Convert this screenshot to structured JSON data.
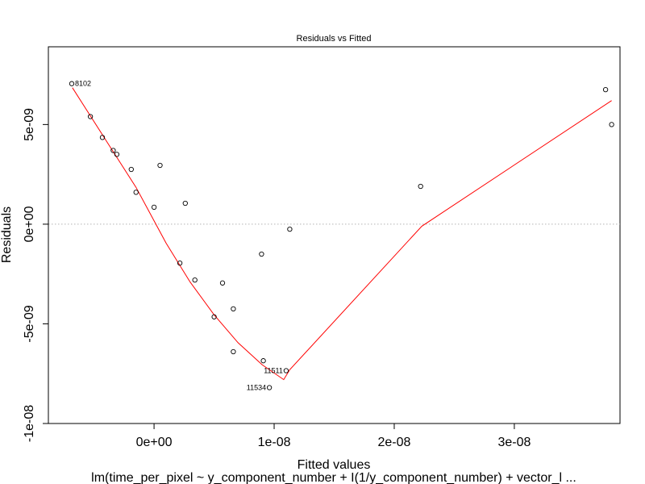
{
  "chart_data": {
    "type": "scatter",
    "title": "Residuals vs Fitted",
    "xlabel": "Fitted values",
    "ylabel": "Residuals",
    "subtitle": "lm(time_per_pixel ~ y_component_number + I(1/y_component_number) + vector_l ...",
    "xlim": [
      -8.8e-09,
      3.88e-08
    ],
    "ylim": [
      -1e-08,
      8.9e-09
    ],
    "x_ticks": [
      {
        "value": 0,
        "label": "0e+00"
      },
      {
        "value": 1e-08,
        "label": "1e-08"
      },
      {
        "value": 2e-08,
        "label": "2e-08"
      },
      {
        "value": 3e-08,
        "label": "3e-08"
      }
    ],
    "y_ticks": [
      {
        "value": -1e-08,
        "label": "-1e-08"
      },
      {
        "value": -5e-09,
        "label": "-5e-09"
      },
      {
        "value": 0,
        "label": "0e+00"
      },
      {
        "value": 5e-09,
        "label": "5e-09"
      }
    ],
    "reference_line_y": 0,
    "points": [
      {
        "x": -6.85e-09,
        "y": 7.05e-09,
        "label": "8102"
      },
      {
        "x": -5.3e-09,
        "y": 5.4e-09,
        "label": ""
      },
      {
        "x": -4.3e-09,
        "y": 4.35e-09,
        "label": ""
      },
      {
        "x": -3.4e-09,
        "y": 3.7e-09,
        "label": ""
      },
      {
        "x": -3.1e-09,
        "y": 3.5e-09,
        "label": ""
      },
      {
        "x": -1.9e-09,
        "y": 2.75e-09,
        "label": ""
      },
      {
        "x": -1.5e-09,
        "y": 1.6e-09,
        "label": ""
      },
      {
        "x": 0.0,
        "y": 8.5e-10,
        "label": ""
      },
      {
        "x": 5e-10,
        "y": 2.95e-09,
        "label": ""
      },
      {
        "x": 2.15e-09,
        "y": -1.95e-09,
        "label": ""
      },
      {
        "x": 2.6e-09,
        "y": 1.05e-09,
        "label": ""
      },
      {
        "x": 3.4e-09,
        "y": -2.8e-09,
        "label": ""
      },
      {
        "x": 5e-09,
        "y": -4.65e-09,
        "label": ""
      },
      {
        "x": 5.7e-09,
        "y": -2.95e-09,
        "label": ""
      },
      {
        "x": 6.6e-09,
        "y": -4.25e-09,
        "label": ""
      },
      {
        "x": 6.6e-09,
        "y": -6.4e-09,
        "label": ""
      },
      {
        "x": 8.95e-09,
        "y": -1.5e-09,
        "label": ""
      },
      {
        "x": 9.1e-09,
        "y": -6.85e-09,
        "label": ""
      },
      {
        "x": 9.6e-09,
        "y": -8.2e-09,
        "label": "11534"
      },
      {
        "x": 1.1e-08,
        "y": -7.35e-09,
        "label": "11511"
      },
      {
        "x": 1.13e-08,
        "y": -2.5e-10,
        "label": ""
      },
      {
        "x": 2.22e-08,
        "y": 1.9e-09,
        "label": ""
      },
      {
        "x": 3.76e-08,
        "y": 6.75e-09,
        "label": ""
      },
      {
        "x": 3.81e-08,
        "y": 5e-09,
        "label": ""
      }
    ],
    "smoother": [
      {
        "x": -6.8e-09,
        "y": 6.85e-09
      },
      {
        "x": -4e-09,
        "y": 4.2e-09
      },
      {
        "x": -1.5e-09,
        "y": 1.85e-09
      },
      {
        "x": 1e-09,
        "y": -9.5e-10
      },
      {
        "x": 3e-09,
        "y": -2.9e-09
      },
      {
        "x": 5e-09,
        "y": -4.55e-09
      },
      {
        "x": 7e-09,
        "y": -5.95e-09
      },
      {
        "x": 9e-09,
        "y": -7.05e-09
      },
      {
        "x": 1.08e-08,
        "y": -7.8e-09
      },
      {
        "x": 1.13e-08,
        "y": -7.3e-09
      },
      {
        "x": 2.23e-08,
        "y": -1e-10
      },
      {
        "x": 3.81e-08,
        "y": 6.2e-09
      }
    ],
    "grid": false,
    "colors": {
      "points": "#000000",
      "smoother": "#ff0000",
      "reference_line": "#b3b3b3",
      "frame": "#000000"
    }
  }
}
